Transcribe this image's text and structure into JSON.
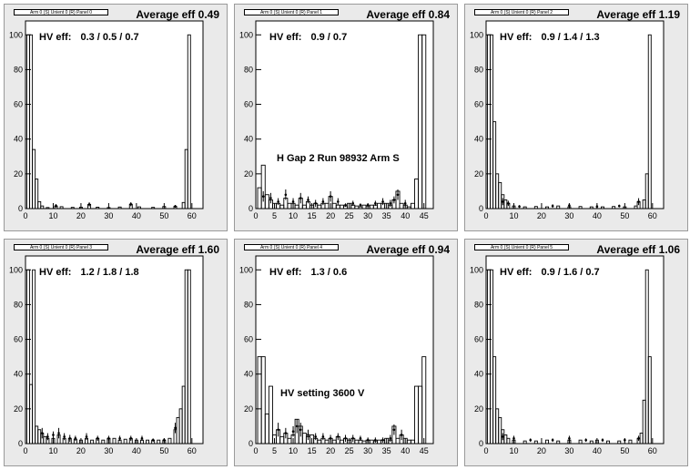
{
  "chart_data": [
    {
      "type": "bar",
      "title": "Arm 0 (S) Unient 0 (R) Panel 0",
      "average_label": "Average eff",
      "average_value": "0.49",
      "hv_label": "HV eff:",
      "hv_value": "0.3 / 0.5 / 0.7",
      "annotation": "",
      "xlim": [
        0,
        64
      ],
      "ylim": [
        0,
        108
      ],
      "xticks": [
        0,
        10,
        20,
        30,
        40,
        50,
        60
      ],
      "yticks": [
        0,
        20,
        40,
        60,
        80,
        100
      ],
      "bins": [
        [
          1,
          100
        ],
        [
          2,
          100
        ],
        [
          3,
          34
        ],
        [
          4,
          17
        ],
        [
          5,
          4
        ],
        [
          6,
          1.5
        ],
        [
          8,
          0.6
        ],
        [
          11,
          1.4
        ],
        [
          13,
          1.1
        ],
        [
          17,
          0.7
        ],
        [
          20,
          0.8
        ],
        [
          23,
          2.4
        ],
        [
          26,
          0.8
        ],
        [
          30,
          0.6
        ],
        [
          34,
          0.9
        ],
        [
          38,
          2.5
        ],
        [
          41,
          1
        ],
        [
          46,
          0.7
        ],
        [
          50,
          1.2
        ],
        [
          54,
          1.3
        ],
        [
          57,
          3.5
        ],
        [
          58,
          34
        ],
        [
          59,
          100
        ]
      ],
      "errors": [
        [
          11,
          1.6,
          1
        ],
        [
          23,
          2.4,
          1.2
        ],
        [
          38,
          2.5,
          1.2
        ],
        [
          54,
          1.3,
          0.8
        ]
      ]
    },
    {
      "type": "bar",
      "title": "Arm 0 (S) Unient 0 (R) Panel 1",
      "average_label": "Average eff",
      "average_value": "0.84",
      "hv_label": "HV eff:",
      "hv_value": "0.9 / 0.7",
      "annotation": "H Gap 2 Run 98932 Arm S",
      "xlim": [
        0,
        47.5
      ],
      "ylim": [
        0,
        108
      ],
      "xticks": [
        0,
        5,
        10,
        15,
        20,
        25,
        30,
        35,
        40,
        45
      ],
      "yticks": [
        0,
        20,
        40,
        60,
        80,
        100
      ],
      "bins": [
        [
          1,
          12
        ],
        [
          2,
          25
        ],
        [
          3,
          8
        ],
        [
          4,
          5
        ],
        [
          5,
          3
        ],
        [
          6,
          3
        ],
        [
          7,
          2
        ],
        [
          8,
          6
        ],
        [
          9,
          3
        ],
        [
          10,
          3
        ],
        [
          11,
          2
        ],
        [
          12,
          6
        ],
        [
          13,
          2
        ],
        [
          14,
          4
        ],
        [
          15,
          2
        ],
        [
          16,
          3
        ],
        [
          17,
          2
        ],
        [
          18,
          3
        ],
        [
          19,
          3
        ],
        [
          20,
          7
        ],
        [
          21,
          3
        ],
        [
          22,
          2
        ],
        [
          23,
          2
        ],
        [
          24,
          1.5
        ],
        [
          25,
          3
        ],
        [
          26,
          2
        ],
        [
          27,
          1.5
        ],
        [
          28,
          1
        ],
        [
          29,
          2
        ],
        [
          30,
          1.5
        ],
        [
          31,
          2
        ],
        [
          32,
          2
        ],
        [
          33,
          3
        ],
        [
          34,
          3
        ],
        [
          35,
          3
        ],
        [
          36,
          2
        ],
        [
          37,
          5
        ],
        [
          38,
          10
        ],
        [
          39,
          3
        ],
        [
          40,
          2
        ],
        [
          41,
          1
        ],
        [
          42,
          3
        ],
        [
          43,
          17
        ],
        [
          44,
          100
        ],
        [
          45,
          100
        ]
      ],
      "errors": [
        [
          2,
          7,
          3
        ],
        [
          4,
          6,
          3
        ],
        [
          6,
          4,
          2
        ],
        [
          8,
          8,
          3
        ],
        [
          10,
          4,
          2
        ],
        [
          12,
          6,
          3
        ],
        [
          14,
          5,
          2
        ],
        [
          16,
          3,
          2
        ],
        [
          18,
          4,
          2
        ],
        [
          20,
          7,
          3
        ],
        [
          22,
          4,
          2
        ],
        [
          24,
          2,
          1
        ],
        [
          26,
          3,
          1.5
        ],
        [
          28,
          2,
          1
        ],
        [
          30,
          2,
          1
        ],
        [
          32,
          3,
          1.5
        ],
        [
          34,
          4,
          2
        ],
        [
          36,
          3,
          2
        ],
        [
          37,
          5,
          2
        ],
        [
          38,
          8,
          3
        ],
        [
          40,
          3,
          2
        ]
      ]
    },
    {
      "type": "bar",
      "title": "Arm 0 (S) Unient 0 (R) Panel 2",
      "average_label": "Average eff",
      "average_value": "1.19",
      "hv_label": "HV eff:",
      "hv_value": "0.9 / 1.4 / 1.3",
      "annotation": "",
      "xlim": [
        0,
        64
      ],
      "ylim": [
        0,
        108
      ],
      "xticks": [
        0,
        10,
        20,
        30,
        40,
        50,
        60
      ],
      "yticks": [
        0,
        20,
        40,
        60,
        80,
        100
      ],
      "bins": [
        [
          1,
          100
        ],
        [
          2,
          100
        ],
        [
          3,
          50
        ],
        [
          4,
          20
        ],
        [
          5,
          15
        ],
        [
          6,
          8
        ],
        [
          7,
          5
        ],
        [
          8,
          3
        ],
        [
          10,
          1.5
        ],
        [
          14,
          1
        ],
        [
          18,
          1.2
        ],
        [
          22,
          1
        ],
        [
          26,
          1.5
        ],
        [
          30,
          1
        ],
        [
          34,
          1.2
        ],
        [
          38,
          1
        ],
        [
          42,
          1
        ],
        [
          46,
          1.2
        ],
        [
          50,
          1
        ],
        [
          54,
          1.5
        ],
        [
          55,
          4
        ],
        [
          57,
          5
        ],
        [
          58,
          20
        ],
        [
          59,
          100
        ]
      ],
      "errors": [
        [
          6,
          4,
          2
        ],
        [
          8,
          3,
          1.5
        ],
        [
          12,
          1.2,
          0.8
        ],
        [
          24,
          1.5,
          1
        ],
        [
          30,
          1.8,
          1
        ],
        [
          40,
          1.2,
          0.8
        ],
        [
          48,
          1.5,
          0.8
        ],
        [
          55,
          4,
          2
        ]
      ]
    },
    {
      "type": "bar",
      "title": "Arm 0 (S) Unient 0 (R) Panel 3",
      "average_label": "Average eff",
      "average_value": "1.60",
      "hv_label": "HV eff:",
      "hv_value": "1.2 / 1.8 / 1.8",
      "annotation": "",
      "xlim": [
        0,
        64
      ],
      "ylim": [
        0,
        108
      ],
      "xticks": [
        0,
        10,
        20,
        30,
        40,
        50,
        60
      ],
      "yticks": [
        0,
        20,
        40,
        60,
        80,
        100
      ],
      "bins": [
        [
          1,
          100
        ],
        [
          2,
          34
        ],
        [
          3,
          100
        ],
        [
          4,
          10
        ],
        [
          5,
          8
        ],
        [
          6,
          6
        ],
        [
          7,
          4
        ],
        [
          8,
          3
        ],
        [
          10,
          3
        ],
        [
          12,
          5
        ],
        [
          14,
          3
        ],
        [
          16,
          3
        ],
        [
          18,
          2.5
        ],
        [
          20,
          2
        ],
        [
          22,
          3
        ],
        [
          24,
          2
        ],
        [
          26,
          3
        ],
        [
          28,
          2
        ],
        [
          30,
          3
        ],
        [
          32,
          3
        ],
        [
          34,
          2
        ],
        [
          36,
          2.5
        ],
        [
          38,
          3
        ],
        [
          40,
          2
        ],
        [
          42,
          2
        ],
        [
          44,
          2
        ],
        [
          46,
          2
        ],
        [
          48,
          2
        ],
        [
          50,
          2
        ],
        [
          52,
          3
        ],
        [
          54,
          8
        ],
        [
          55,
          15
        ],
        [
          56,
          20
        ],
        [
          57,
          33
        ],
        [
          58,
          100
        ],
        [
          59,
          100
        ]
      ],
      "errors": [
        [
          6,
          6,
          3
        ],
        [
          8,
          4,
          2
        ],
        [
          10,
          5,
          2
        ],
        [
          12,
          6,
          3
        ],
        [
          14,
          4,
          2
        ],
        [
          16,
          3,
          2
        ],
        [
          18,
          3,
          1.5
        ],
        [
          22,
          4,
          2
        ],
        [
          26,
          3,
          1.5
        ],
        [
          30,
          3,
          1.5
        ],
        [
          34,
          3,
          1.5
        ],
        [
          38,
          3,
          1.5
        ],
        [
          42,
          3,
          1.5
        ],
        [
          46,
          2,
          1
        ],
        [
          50,
          2,
          1
        ],
        [
          54,
          9,
          3
        ]
      ]
    },
    {
      "type": "bar",
      "title": "Arm 0 (S) Unient 0 (R) Panel 4",
      "average_label": "Average eff",
      "average_value": "0.94",
      "hv_label": "HV eff:",
      "hv_value": "1.3 / 0.6",
      "annotation": "HV setting 3600 V",
      "xlim": [
        0,
        47.5
      ],
      "ylim": [
        0,
        108
      ],
      "xticks": [
        0,
        5,
        10,
        15,
        20,
        25,
        30,
        35,
        40,
        45
      ],
      "yticks": [
        0,
        20,
        40,
        60,
        80,
        100
      ],
      "bins": [
        [
          1,
          50
        ],
        [
          2,
          50
        ],
        [
          3,
          17
        ],
        [
          4,
          33
        ],
        [
          5,
          5
        ],
        [
          6,
          8
        ],
        [
          7,
          4
        ],
        [
          8,
          6
        ],
        [
          9,
          3
        ],
        [
          10,
          5
        ],
        [
          11,
          14
        ],
        [
          12,
          10
        ],
        [
          13,
          6
        ],
        [
          14,
          4
        ],
        [
          15,
          5
        ],
        [
          16,
          3
        ],
        [
          17,
          2
        ],
        [
          18,
          3
        ],
        [
          19,
          2
        ],
        [
          20,
          3
        ],
        [
          21,
          2
        ],
        [
          22,
          4
        ],
        [
          23,
          2
        ],
        [
          24,
          3
        ],
        [
          25,
          2
        ],
        [
          26,
          3
        ],
        [
          27,
          2
        ],
        [
          28,
          2
        ],
        [
          29,
          1.5
        ],
        [
          30,
          2
        ],
        [
          31,
          2
        ],
        [
          32,
          1.5
        ],
        [
          33,
          2
        ],
        [
          34,
          2
        ],
        [
          35,
          3
        ],
        [
          36,
          2
        ],
        [
          37,
          10
        ],
        [
          38,
          3
        ],
        [
          39,
          5
        ],
        [
          40,
          3
        ],
        [
          41,
          2
        ],
        [
          42,
          2
        ],
        [
          43,
          33
        ],
        [
          44,
          33
        ],
        [
          45,
          50
        ]
      ],
      "errors": [
        [
          6,
          8,
          4
        ],
        [
          8,
          6,
          3
        ],
        [
          10,
          7,
          3
        ],
        [
          11,
          10,
          4
        ],
        [
          12,
          8,
          4
        ],
        [
          14,
          5,
          3
        ],
        [
          16,
          4,
          2
        ],
        [
          18,
          4,
          2
        ],
        [
          20,
          3,
          2
        ],
        [
          22,
          4,
          2
        ],
        [
          24,
          3,
          2
        ],
        [
          26,
          3,
          2
        ],
        [
          28,
          3,
          1.5
        ],
        [
          30,
          2,
          1.5
        ],
        [
          32,
          2,
          1.5
        ],
        [
          34,
          2,
          1.5
        ],
        [
          36,
          3,
          2
        ],
        [
          37,
          8,
          3
        ],
        [
          39,
          5,
          3
        ]
      ]
    },
    {
      "type": "bar",
      "title": "Arm 0 (S) Unient 0 (R) Panel 5",
      "average_label": "Average eff",
      "average_value": "1.06",
      "hv_label": "HV eff:",
      "hv_value": "0.9 / 1.6 / 0.7",
      "annotation": "",
      "xlim": [
        0,
        64
      ],
      "ylim": [
        0,
        108
      ],
      "xticks": [
        0,
        10,
        20,
        30,
        40,
        50,
        60
      ],
      "yticks": [
        0,
        20,
        40,
        60,
        80,
        100
      ],
      "bins": [
        [
          1,
          100
        ],
        [
          2,
          100
        ],
        [
          3,
          50
        ],
        [
          4,
          20
        ],
        [
          5,
          15
        ],
        [
          6,
          8
        ],
        [
          7,
          5
        ],
        [
          8,
          3
        ],
        [
          10,
          2
        ],
        [
          14,
          1.5
        ],
        [
          18,
          1.5
        ],
        [
          22,
          2
        ],
        [
          26,
          1.5
        ],
        [
          30,
          2
        ],
        [
          34,
          2
        ],
        [
          38,
          1.5
        ],
        [
          40,
          2
        ],
        [
          44,
          1.5
        ],
        [
          48,
          1.5
        ],
        [
          52,
          2
        ],
        [
          55,
          3
        ],
        [
          56,
          6
        ],
        [
          57,
          25
        ],
        [
          58,
          100
        ],
        [
          59,
          50
        ]
      ],
      "errors": [
        [
          6,
          4,
          2
        ],
        [
          10,
          3,
          1.5
        ],
        [
          16,
          2,
          1
        ],
        [
          24,
          2,
          1
        ],
        [
          30,
          3,
          1.5
        ],
        [
          36,
          2,
          1
        ],
        [
          42,
          2,
          1
        ],
        [
          50,
          2,
          1
        ],
        [
          55,
          3,
          1.5
        ]
      ]
    }
  ]
}
